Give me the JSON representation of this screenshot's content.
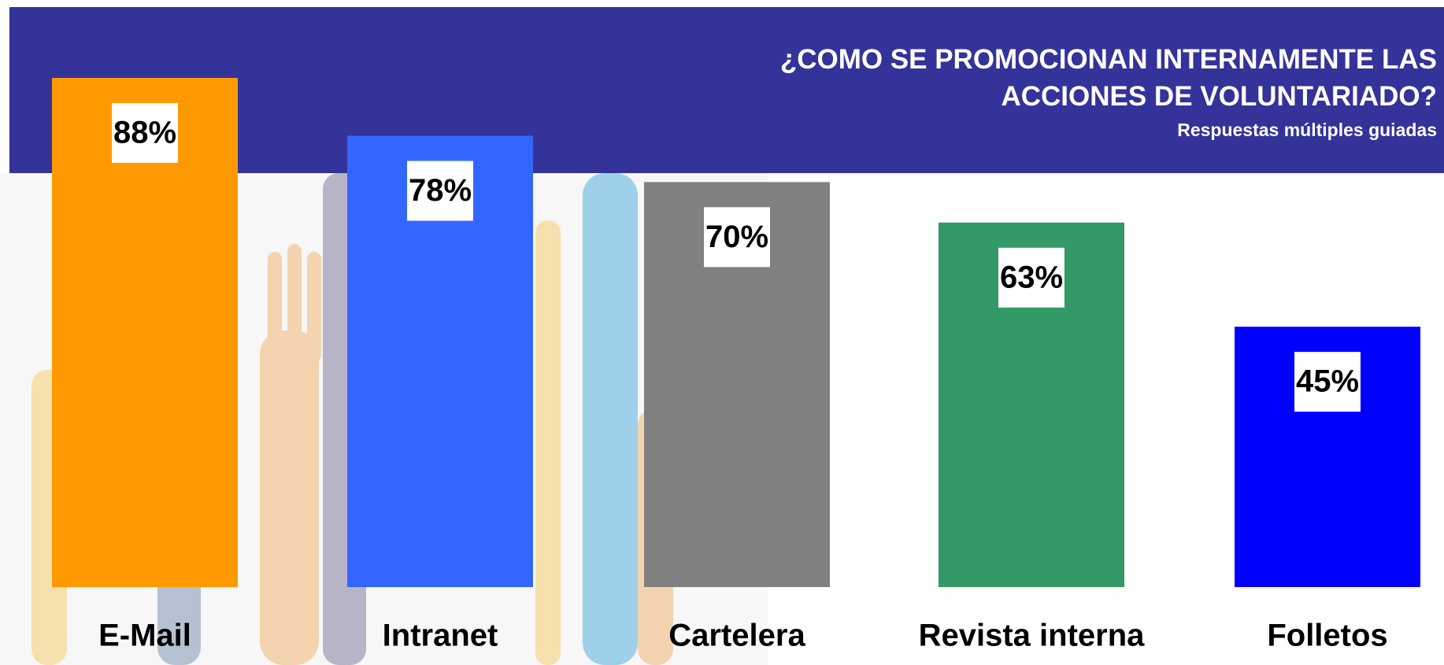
{
  "chart_data": {
    "type": "bar",
    "title": "¿COMO SE PROMOCIONAN INTERNAMENTE LAS ACCIONES DE VOLUNTARIADO?",
    "subtitle": "Respuestas múltiples guiadas",
    "categories": [
      "E-Mail",
      "Intranet",
      "Cartelera",
      "Revista interna",
      "Folletos"
    ],
    "values": [
      88,
      78,
      70,
      63,
      45
    ],
    "value_labels": [
      "88%",
      "78%",
      "70%",
      "63%",
      "45%"
    ],
    "colors": [
      "#ff9900",
      "#3366ff",
      "#808080",
      "#339966",
      "#0000ff"
    ]
  }
}
